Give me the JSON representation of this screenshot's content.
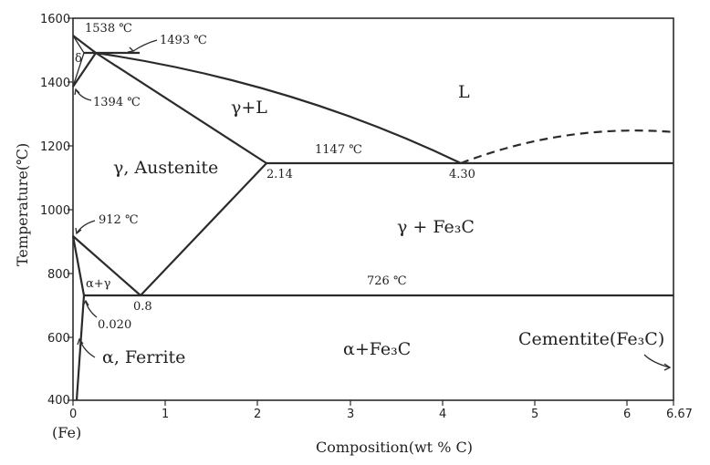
{
  "title": "",
  "axes": {
    "x_label": "Composition(wt % C)",
    "y_label": "Temperature(℃)",
    "x_ticks": [
      "0",
      "1",
      "2",
      "3",
      "4",
      "5",
      "6",
      "6.67"
    ],
    "y_ticks": [
      "400",
      "600",
      "800",
      "1000",
      "1200",
      "1400",
      "1600"
    ],
    "x_origin_note": "(Fe)"
  },
  "phase_regions": {
    "liquid": "L",
    "gamma_liquid": "γ+L",
    "austenite": "γ, Austenite",
    "gamma_cementite": "γ + Fe₃C",
    "alpha_gamma": "α+γ",
    "alpha_cementite": "α+Fe₃C",
    "ferrite": "α, Ferrite",
    "cementite": "Cementite(Fe₃C)",
    "delta": "δ"
  },
  "temperature_labels": {
    "t1538": "1538 ℃",
    "t1493": "1493 ℃",
    "t1394": "1394 ℃",
    "t1147": "1147 ℃",
    "t912": "912 ℃",
    "t726": "726 ℃"
  },
  "composition_labels": {
    "c214": "2.14",
    "c430": "4.30",
    "c08": "0.8",
    "c0020": "0.020"
  },
  "colors": {
    "line": "#2b2b2b",
    "text": "#222222",
    "background": "#ffffff"
  }
}
